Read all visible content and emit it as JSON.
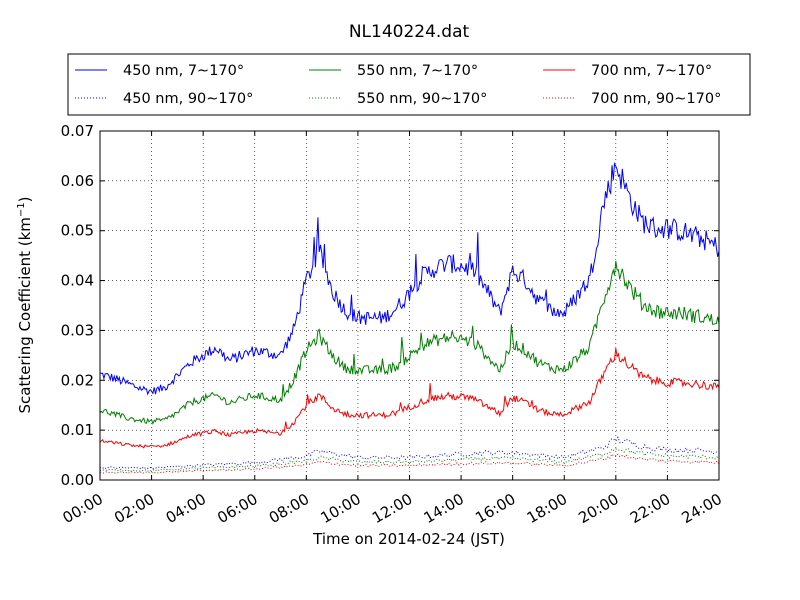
{
  "chart_data": {
    "type": "line",
    "title": "NL140224.dat",
    "xlabel": "Time on 2014-02-24 (JST)",
    "ylabel": "Scattering Coefficient (km",
    "ylabel_exp": "−1",
    "ylabel_close": ")",
    "xlim": [
      0,
      24
    ],
    "ylim": [
      0,
      0.07
    ],
    "x_ticks": [
      {
        "value": 0,
        "label": "00:00"
      },
      {
        "value": 2,
        "label": "02:00"
      },
      {
        "value": 4,
        "label": "04:00"
      },
      {
        "value": 6,
        "label": "06:00"
      },
      {
        "value": 8,
        "label": "08:00"
      },
      {
        "value": 10,
        "label": "10:00"
      },
      {
        "value": 12,
        "label": "12:00"
      },
      {
        "value": 14,
        "label": "14:00"
      },
      {
        "value": 16,
        "label": "16:00"
      },
      {
        "value": 18,
        "label": "18:00"
      },
      {
        "value": 20,
        "label": "20:00"
      },
      {
        "value": 22,
        "label": "22:00"
      },
      {
        "value": 24,
        "label": "24:00"
      }
    ],
    "y_ticks": [
      {
        "value": 0,
        "label": "0.00"
      },
      {
        "value": 0.01,
        "label": "0.01"
      },
      {
        "value": 0.02,
        "label": "0.02"
      },
      {
        "value": 0.03,
        "label": "0.03"
      },
      {
        "value": 0.04,
        "label": "0.04"
      },
      {
        "value": 0.05,
        "label": "0.05"
      },
      {
        "value": 0.06,
        "label": "0.06"
      },
      {
        "value": 0.07,
        "label": "0.07"
      }
    ],
    "grid": true,
    "legend_position": "top, above plot",
    "series": [
      {
        "name": "450 nm, 7∼170°",
        "color": "#0000ff",
        "style": "solid",
        "x": [
          0,
          0.5,
          1,
          1.5,
          2,
          2.5,
          3,
          3.5,
          4,
          4.5,
          5,
          5.5,
          6,
          6.5,
          7,
          7.5,
          8,
          8.5,
          9,
          9.5,
          10,
          10.5,
          11,
          11.5,
          12,
          12.5,
          13,
          13.5,
          14,
          14.5,
          15,
          15.5,
          16,
          16.5,
          17,
          17.5,
          18,
          18.5,
          19,
          19.5,
          20,
          20.5,
          21,
          21.5,
          22,
          22.5,
          23,
          23.5,
          24
        ],
        "y": [
          0.0212,
          0.0205,
          0.0195,
          0.0185,
          0.0178,
          0.0185,
          0.021,
          0.0235,
          0.025,
          0.0265,
          0.024,
          0.025,
          0.026,
          0.0255,
          0.025,
          0.03,
          0.04,
          0.046,
          0.038,
          0.034,
          0.0325,
          0.0325,
          0.0325,
          0.0345,
          0.0375,
          0.041,
          0.0425,
          0.0435,
          0.043,
          0.042,
          0.038,
          0.0335,
          0.042,
          0.04,
          0.036,
          0.034,
          0.0335,
          0.037,
          0.0405,
          0.055,
          0.0635,
          0.057,
          0.052,
          0.0505,
          0.0505,
          0.05,
          0.049,
          0.048,
          0.0465
        ]
      },
      {
        "name": "450 nm, 90∼170°",
        "color": "#0000ff",
        "style": "dotted",
        "x": [
          0,
          2,
          4,
          6,
          8,
          8.5,
          10,
          12,
          14,
          15,
          16,
          18,
          19.5,
          20,
          21,
          22,
          23,
          24
        ],
        "y": [
          0.0025,
          0.0024,
          0.003,
          0.0035,
          0.0048,
          0.0058,
          0.0045,
          0.0045,
          0.0052,
          0.0055,
          0.0055,
          0.0045,
          0.0065,
          0.0082,
          0.0068,
          0.006,
          0.006,
          0.0057
        ]
      },
      {
        "name": "550 nm, 7∼170°",
        "color": "#008000",
        "style": "solid",
        "x": [
          0,
          0.5,
          1,
          1.5,
          2,
          2.5,
          3,
          3.5,
          4,
          4.5,
          5,
          5.5,
          6,
          6.5,
          7,
          7.5,
          8,
          8.5,
          9,
          9.5,
          10,
          10.5,
          11,
          11.5,
          12,
          12.5,
          13,
          13.5,
          14,
          14.5,
          15,
          15.5,
          16,
          16.5,
          17,
          17.5,
          18,
          18.5,
          19,
          19.5,
          20,
          20.5,
          21,
          21.5,
          22,
          22.5,
          23,
          23.5,
          24
        ],
        "y": [
          0.014,
          0.0133,
          0.0125,
          0.012,
          0.0117,
          0.012,
          0.0135,
          0.0155,
          0.0163,
          0.017,
          0.0155,
          0.0162,
          0.017,
          0.0165,
          0.016,
          0.02,
          0.026,
          0.029,
          0.025,
          0.0225,
          0.022,
          0.022,
          0.022,
          0.0228,
          0.0248,
          0.027,
          0.028,
          0.0285,
          0.0283,
          0.0275,
          0.025,
          0.022,
          0.0275,
          0.026,
          0.0235,
          0.0225,
          0.0222,
          0.0245,
          0.0268,
          0.036,
          0.0435,
          0.039,
          0.0355,
          0.034,
          0.0335,
          0.0335,
          0.033,
          0.0325,
          0.0315
        ]
      },
      {
        "name": "550 nm, 90∼170°",
        "color": "#008000",
        "style": "dotted",
        "x": [
          0,
          2,
          4,
          6,
          8,
          8.5,
          10,
          12,
          14,
          15,
          16,
          18,
          19.5,
          20,
          21,
          22,
          23,
          24
        ],
        "y": [
          0.002,
          0.0019,
          0.0024,
          0.0028,
          0.0038,
          0.0045,
          0.0036,
          0.0036,
          0.0041,
          0.0043,
          0.0043,
          0.0036,
          0.0052,
          0.0064,
          0.0053,
          0.0048,
          0.0047,
          0.0045
        ]
      },
      {
        "name": "700 nm, 7∼170°",
        "color": "#ff0000",
        "style": "solid",
        "x": [
          0,
          0.5,
          1,
          1.5,
          2,
          2.5,
          3,
          3.5,
          4,
          4.5,
          5,
          5.5,
          6,
          6.5,
          7,
          7.5,
          8,
          8.5,
          9,
          9.5,
          10,
          10.5,
          11,
          11.5,
          12,
          12.5,
          13,
          13.5,
          14,
          14.5,
          15,
          15.5,
          16,
          16.5,
          17,
          17.5,
          18,
          18.5,
          19,
          19.5,
          20,
          20.5,
          21,
          21.5,
          22,
          22.5,
          23,
          23.5,
          24
        ],
        "y": [
          0.0078,
          0.0075,
          0.0071,
          0.0068,
          0.0067,
          0.0069,
          0.0078,
          0.0089,
          0.0094,
          0.0098,
          0.009,
          0.0094,
          0.0099,
          0.0096,
          0.0093,
          0.0115,
          0.015,
          0.017,
          0.0145,
          0.0132,
          0.013,
          0.013,
          0.013,
          0.0135,
          0.0146,
          0.0158,
          0.0165,
          0.0168,
          0.0167,
          0.0162,
          0.0148,
          0.0133,
          0.0165,
          0.0155,
          0.014,
          0.0133,
          0.0132,
          0.0145,
          0.0158,
          0.021,
          0.0255,
          0.023,
          0.0208,
          0.0199,
          0.0196,
          0.0195,
          0.0193,
          0.019,
          0.0185
        ]
      },
      {
        "name": "700 nm, 90∼170°",
        "color": "#ff0000",
        "style": "dotted",
        "x": [
          0,
          2,
          4,
          6,
          8,
          8.5,
          10,
          12,
          14,
          15,
          16,
          18,
          19.5,
          20,
          21,
          22,
          23,
          24
        ],
        "y": [
          0.0015,
          0.0015,
          0.0019,
          0.0022,
          0.003,
          0.0036,
          0.0029,
          0.0029,
          0.0033,
          0.0034,
          0.0034,
          0.0029,
          0.0042,
          0.0051,
          0.0042,
          0.0038,
          0.0037,
          0.0035
        ]
      }
    ]
  }
}
